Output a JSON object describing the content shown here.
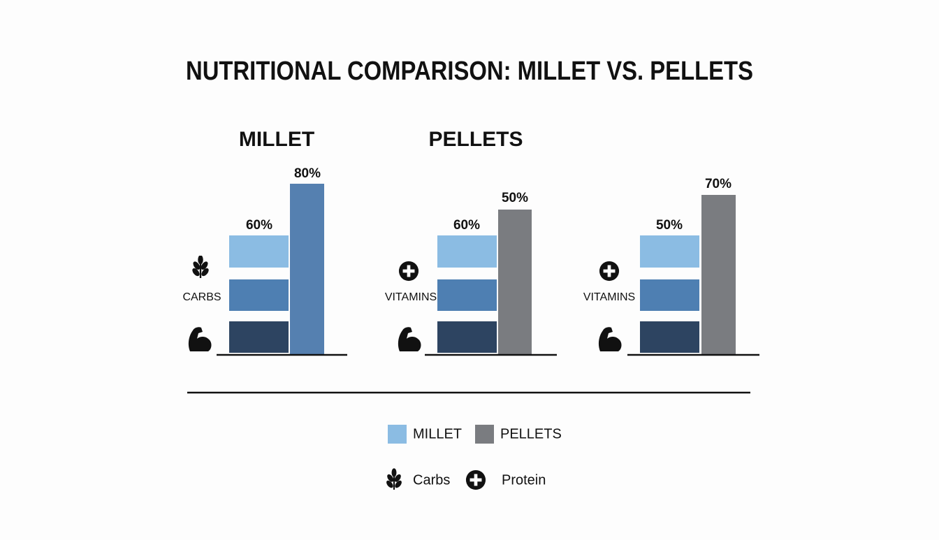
{
  "title": "NUTRITIONAL COMPARISON: MILLET VS. PELLETS",
  "groups": [
    {
      "heading": "MILLET",
      "label": "CARBS",
      "stack_label": "60%",
      "bar_label": "80%"
    },
    {
      "heading": "PELLETS",
      "label": "VITAMINS",
      "stack_label": "60%",
      "bar_label": "50%"
    },
    {
      "label": "VITAMINS",
      "stack_label": "50%",
      "bar_label": "70%"
    }
  ],
  "legend": {
    "series": [
      "MILLET",
      "PELLETS"
    ],
    "icons": [
      "Carbs",
      "Protein"
    ]
  }
}
